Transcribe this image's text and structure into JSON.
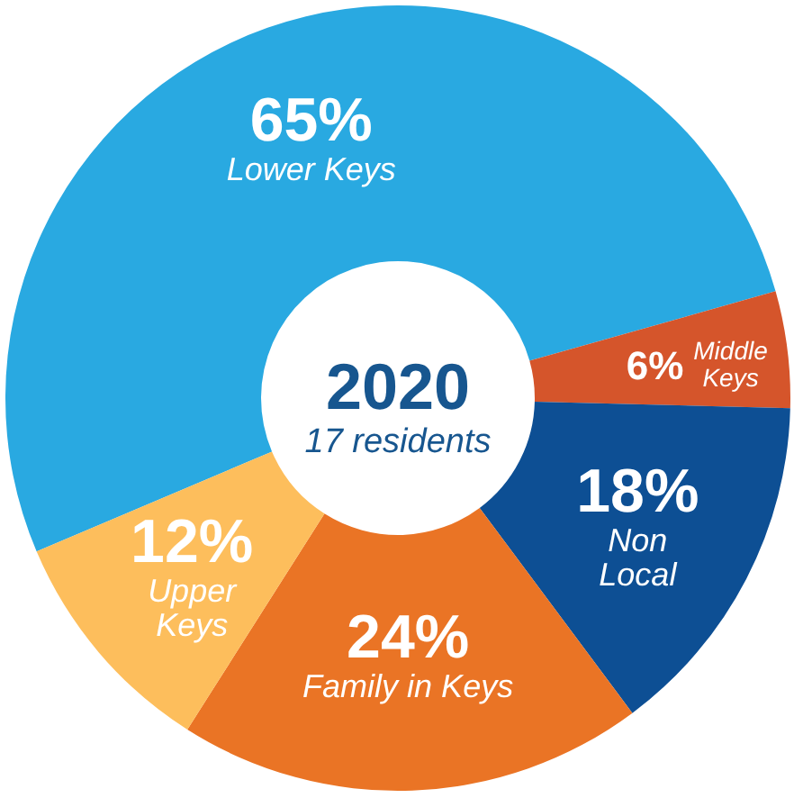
{
  "chart_data": {
    "type": "donut",
    "title": "2020",
    "subtitle": "17 residents",
    "categories": [
      "Lower Keys",
      "Middle Keys",
      "Non Local",
      "Family in Keys",
      "Upper Keys"
    ],
    "values": [
      65,
      6,
      18,
      24,
      12
    ],
    "value_labels": [
      "65%",
      "6%",
      "18%",
      "24%",
      "12%"
    ],
    "colors": [
      "#29a9e1",
      "#d5552b",
      "#0d4f94",
      "#ea7425",
      "#fdbe5c"
    ]
  }
}
